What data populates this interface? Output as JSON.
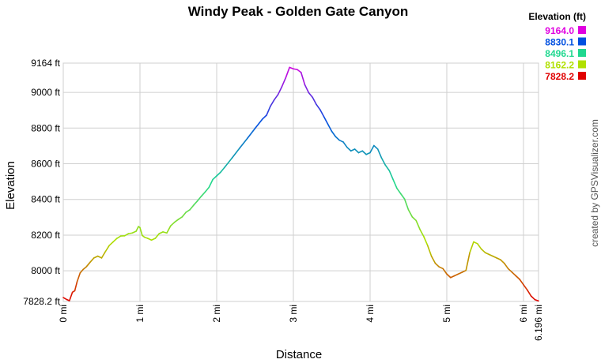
{
  "chart_data": {
    "type": "line",
    "title": "Windy Peak - Golden Gate Canyon",
    "xlabel": "Distance",
    "ylabel": "Elevation",
    "xlim": [
      0,
      6.196
    ],
    "ylim": [
      7828.2,
      9164
    ],
    "x_ticks": [
      {
        "value": 0,
        "label": "0 mi"
      },
      {
        "value": 1,
        "label": "1 mi"
      },
      {
        "value": 2,
        "label": "2 mi"
      },
      {
        "value": 3,
        "label": "3 mi"
      },
      {
        "value": 4,
        "label": "4 mi"
      },
      {
        "value": 5,
        "label": "5 mi"
      },
      {
        "value": 6,
        "label": "6 mi"
      },
      {
        "value": 6.196,
        "label": "6.196 mi"
      }
    ],
    "y_ticks": [
      {
        "value": 7828.2,
        "label": "7828.2 ft"
      },
      {
        "value": 8000,
        "label": "8000 ft"
      },
      {
        "value": 8200,
        "label": "8200 ft"
      },
      {
        "value": 8400,
        "label": "8400 ft"
      },
      {
        "value": 8600,
        "label": "8600 ft"
      },
      {
        "value": 8800,
        "label": "8800 ft"
      },
      {
        "value": 9000,
        "label": "9000 ft"
      },
      {
        "value": 9164,
        "label": "9164 ft"
      }
    ],
    "grid": true,
    "legend": {
      "title": "Elevation (ft)",
      "placement": "top-right",
      "entries": [
        {
          "label": "9164.0",
          "color": "#e000e0"
        },
        {
          "label": "8830.1",
          "color": "#0050e0"
        },
        {
          "label": "8496.1",
          "color": "#20d890"
        },
        {
          "label": "8162.2",
          "color": "#b0e000"
        },
        {
          "label": "7828.2",
          "color": "#e00000"
        }
      ]
    },
    "color_scale": [
      "#e00000",
      "#b0e000",
      "#20d890",
      "#0050e0",
      "#e000e0"
    ],
    "series": [
      {
        "x": [
          0.0,
          0.05,
          0.08,
          0.12,
          0.15,
          0.18,
          0.22,
          0.26,
          0.3,
          0.35,
          0.4,
          0.45,
          0.5,
          0.55,
          0.6,
          0.65,
          0.7,
          0.75,
          0.8,
          0.85,
          0.9,
          0.95,
          0.98,
          1.0,
          1.03,
          1.06,
          1.1,
          1.15,
          1.2,
          1.25,
          1.3,
          1.35,
          1.4,
          1.45,
          1.5,
          1.55,
          1.6,
          1.65,
          1.7,
          1.75,
          1.8,
          1.85,
          1.9,
          1.95,
          2.0,
          2.05,
          2.1,
          2.2,
          2.3,
          2.4,
          2.5,
          2.6,
          2.65,
          2.7,
          2.75,
          2.8,
          2.85,
          2.9,
          2.95,
          3.0,
          3.05,
          3.1,
          3.15,
          3.2,
          3.25,
          3.3,
          3.35,
          3.4,
          3.45,
          3.5,
          3.55,
          3.6,
          3.65,
          3.7,
          3.75,
          3.8,
          3.85,
          3.9,
          3.95,
          4.0,
          4.05,
          4.1,
          4.15,
          4.2,
          4.25,
          4.3,
          4.35,
          4.4,
          4.45,
          4.5,
          4.55,
          4.6,
          4.65,
          4.7,
          4.75,
          4.8,
          4.85,
          4.9,
          4.95,
          5.0,
          5.05,
          5.1,
          5.15,
          5.2,
          5.25,
          5.3,
          5.35,
          5.4,
          5.45,
          5.5,
          5.55,
          5.6,
          5.65,
          5.7,
          5.75,
          5.8,
          5.85,
          5.9,
          5.95,
          6.0,
          6.05,
          6.1,
          6.15,
          6.196
        ],
        "y": [
          7850,
          7838,
          7832,
          7880,
          7888,
          7938,
          7988,
          8008,
          8022,
          8048,
          8072,
          8082,
          8072,
          8108,
          8142,
          8162,
          8182,
          8195,
          8196,
          8208,
          8212,
          8222,
          8248,
          8242,
          8198,
          8188,
          8182,
          8172,
          8182,
          8208,
          8218,
          8212,
          8252,
          8272,
          8288,
          8302,
          8328,
          8342,
          8368,
          8392,
          8418,
          8442,
          8468,
          8512,
          8532,
          8552,
          8578,
          8632,
          8688,
          8742,
          8798,
          8852,
          8872,
          8922,
          8958,
          8988,
          9032,
          9082,
          9140,
          9132,
          9128,
          9112,
          9042,
          8998,
          8972,
          8932,
          8902,
          8862,
          8822,
          8782,
          8752,
          8732,
          8722,
          8692,
          8672,
          8682,
          8662,
          8672,
          8652,
          8662,
          8702,
          8682,
          8632,
          8592,
          8562,
          8512,
          8462,
          8432,
          8402,
          8342,
          8302,
          8282,
          8232,
          8192,
          8142,
          8082,
          8042,
          8022,
          8012,
          7982,
          7962,
          7972,
          7982,
          7992,
          8002,
          8102,
          8162,
          8152,
          8122,
          8102,
          8092,
          8082,
          8072,
          8062,
          8042,
          8012,
          7992,
          7972,
          7952,
          7922,
          7892,
          7858,
          7838,
          7831
        ]
      }
    ]
  },
  "credit": "created by GPSVisualizer.com"
}
